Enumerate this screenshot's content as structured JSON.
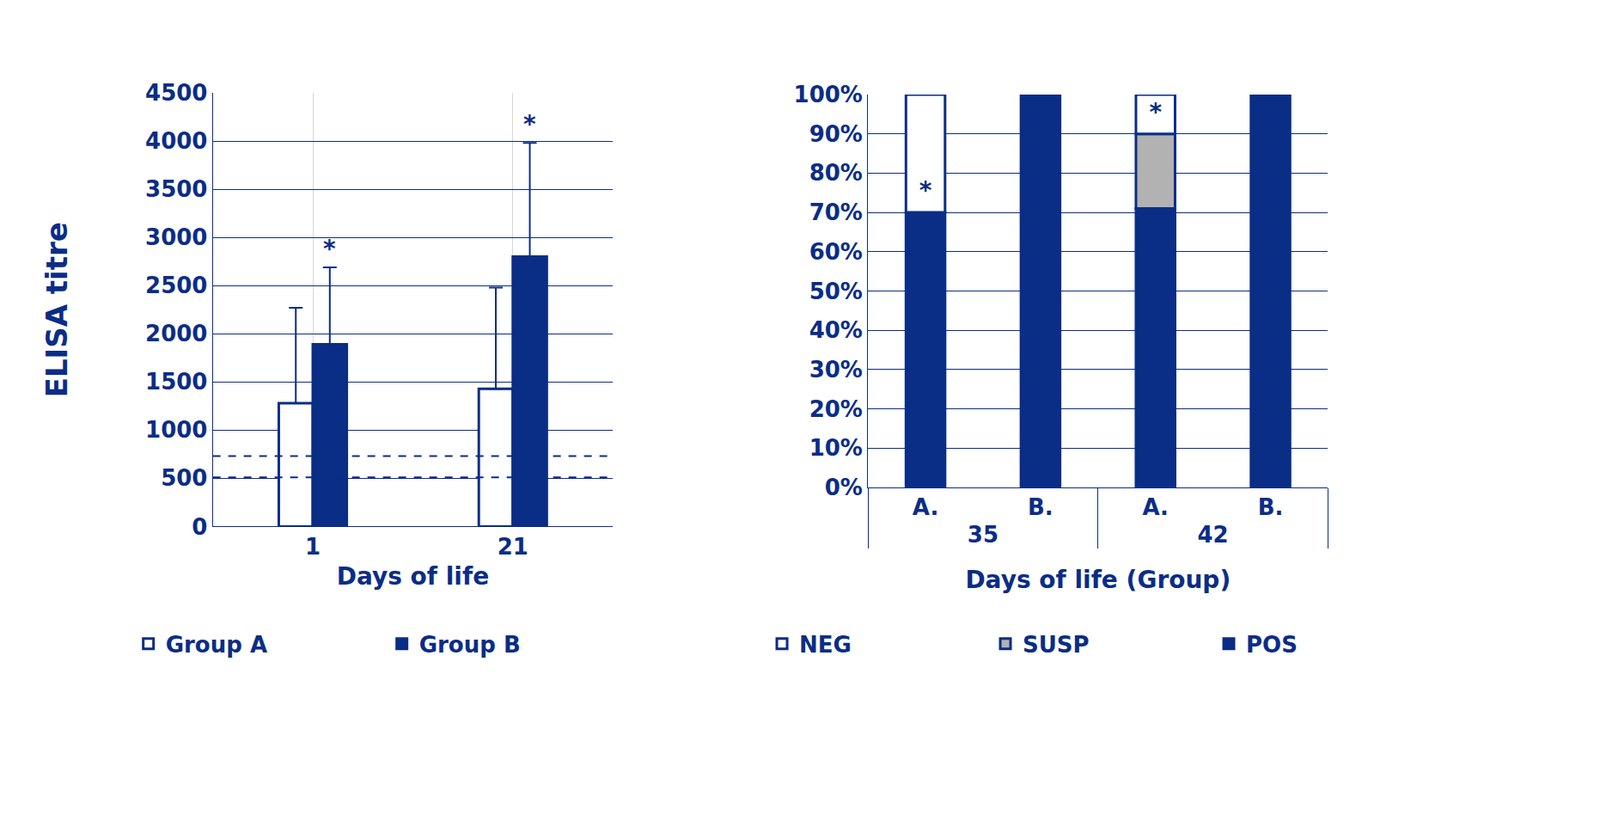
{
  "chart_data": [
    {
      "type": "bar",
      "ylabel": "ELISA titre",
      "xlabel": "Days of life",
      "categories": [
        "1",
        "21"
      ],
      "series": [
        {
          "name": "Group A",
          "color": "#ffffff",
          "values": [
            1280,
            1430
          ],
          "error": [
            990,
            1050
          ]
        },
        {
          "name": "Group B",
          "color": "#0a2d86",
          "values": [
            1890,
            2800
          ],
          "error": [
            800,
            1180
          ]
        }
      ],
      "ylim": [
        0,
        4500
      ],
      "yticks": [
        0,
        500,
        1000,
        1500,
        2000,
        2500,
        3000,
        3500,
        4000,
        4500
      ],
      "grid": true,
      "legend": "bottom",
      "reference_lines": [
        510,
        730
      ],
      "annotations": [
        {
          "text": "*",
          "category": "1",
          "series": "Group B",
          "y": 2720
        },
        {
          "text": "*",
          "category": "21",
          "series": "Group B",
          "y": 4010
        }
      ]
    },
    {
      "type": "bar",
      "stacked": true,
      "xlabel": "Days of life (Group)",
      "categories": [
        [
          "35",
          "A."
        ],
        [
          "35",
          "B."
        ],
        [
          "42",
          "A."
        ],
        [
          "42",
          "B."
        ]
      ],
      "series": [
        {
          "name": "POS",
          "color": "#0a2d86",
          "values": [
            70,
            100,
            71,
            100
          ]
        },
        {
          "name": "SUSP",
          "color": "#b2b2b2",
          "values": [
            0,
            0,
            19,
            0
          ]
        },
        {
          "name": "NEG",
          "color": "#ffffff",
          "values": [
            30,
            0,
            10,
            0
          ]
        }
      ],
      "ylim": [
        0,
        100
      ],
      "yticks": [
        {
          "value": 0,
          "label": "0%"
        },
        {
          "value": 10,
          "label": "10%"
        },
        {
          "value": 20,
          "label": "20%"
        },
        {
          "value": 30,
          "label": "30%"
        },
        {
          "value": 40,
          "label": "40%"
        },
        {
          "value": 50,
          "label": "50%"
        },
        {
          "value": 60,
          "label": "60%"
        },
        {
          "value": 70,
          "label": "70%"
        },
        {
          "value": 80,
          "label": "80%"
        },
        {
          "value": 90,
          "label": "90%"
        },
        {
          "value": 100,
          "label": "100%"
        }
      ],
      "grid": true,
      "legend": "bottom",
      "annotations": [
        {
          "text": "*",
          "category": [
            "35",
            "A."
          ],
          "y": 75
        },
        {
          "text": "*",
          "category": [
            "42",
            "A."
          ],
          "y": 95
        }
      ]
    }
  ]
}
